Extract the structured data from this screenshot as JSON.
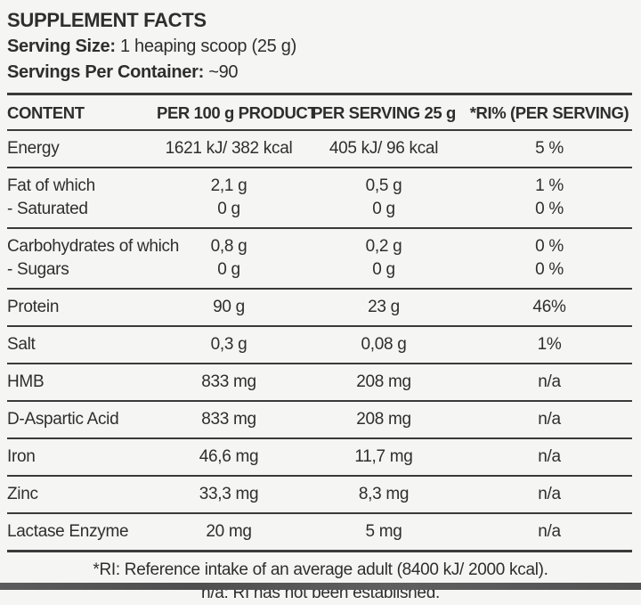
{
  "header": {
    "title": "SUPPLEMENT FACTS",
    "serving_size_label": "Serving Size:",
    "serving_size_value": " 1 heaping scoop (25 g)",
    "servings_per_container_label": "Servings Per Container:",
    "servings_per_container_value": " ~90"
  },
  "table": {
    "columns": [
      "CONTENT",
      "PER 100 g PRODUCT",
      "PER SERVING 25 g",
      "*RI% (PER SERVING)"
    ],
    "rows": [
      [
        "Energy",
        "1621 kJ/ 382 kcal",
        "405 kJ/ 96 kcal",
        "5 %"
      ],
      [
        "Fat of which",
        "2,1 g",
        "0,5 g",
        "1 %"
      ],
      [
        "- Saturated",
        "0 g",
        "0 g",
        "0 %"
      ],
      [
        "Carbohydrates of which",
        "0,8 g",
        "0,2 g",
        "0 %"
      ],
      [
        "- Sugars",
        "0 g",
        "0 g",
        "0 %"
      ],
      [
        "Protein",
        "90 g",
        "23 g",
        "46%"
      ],
      [
        "Salt",
        "0,3 g",
        "0,08 g",
        "1%"
      ],
      [
        "HMB",
        "833 mg",
        "208 mg",
        "n/a"
      ],
      [
        "D-Aspartic Acid",
        "833 mg",
        "208 mg",
        "n/a"
      ],
      [
        "Iron",
        "46,6 mg",
        "11,7 mg",
        "n/a"
      ],
      [
        "Zinc",
        "33,3 mg",
        "8,3 mg",
        "n/a"
      ],
      [
        "Lactase Enzyme",
        "20 mg",
        "5 mg",
        "n/a"
      ]
    ]
  },
  "footnotes": {
    "line1": "*RI: Reference intake of an average adult (8400 kJ/ 2000 kcal).",
    "line2": "n/a: RI has not been established."
  },
  "colors": {
    "text": "#2e2e2e",
    "rule": "#3a3a3a",
    "background": "#f5f5f3",
    "bottom_strip": "#525252"
  }
}
